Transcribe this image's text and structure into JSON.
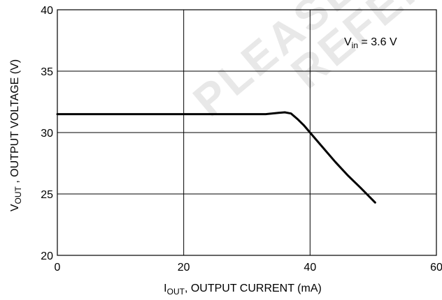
{
  "watermark": {
    "line1": "PLEASE C",
    "line2": "REFERE"
  },
  "chart_data": {
    "type": "line",
    "xlabel": {
      "main": "I",
      "sub": "OUT",
      "rest": ", OUTPUT CURRENT (mA)"
    },
    "ylabel": {
      "main": "V",
      "sub": "OUT",
      "rest": " , OUTPUT VOLTAGE (V)"
    },
    "annotation": {
      "main": "V",
      "sub": "in",
      "rest": " = 3.6 V"
    },
    "xlim": [
      0,
      60
    ],
    "ylim": [
      20,
      40
    ],
    "xticks": [
      0,
      20,
      40,
      60
    ],
    "xtick_labels": [
      "0",
      "20",
      "40",
      "60"
    ],
    "yticks": [
      20,
      25,
      30,
      35,
      40
    ],
    "ytick_labels": [
      "20",
      "25",
      "30",
      "35",
      "40"
    ],
    "grid": true,
    "series": [
      {
        "x": [
          0,
          10,
          20,
          30,
          33,
          35,
          36,
          37,
          38,
          39,
          40,
          42,
          44,
          46,
          48,
          50.3
        ],
        "y": [
          31.5,
          31.5,
          31.5,
          31.5,
          31.5,
          31.6,
          31.65,
          31.55,
          31.1,
          30.6,
          30.0,
          28.8,
          27.6,
          26.5,
          25.5,
          24.3
        ]
      }
    ],
    "line_color": "#000000"
  }
}
